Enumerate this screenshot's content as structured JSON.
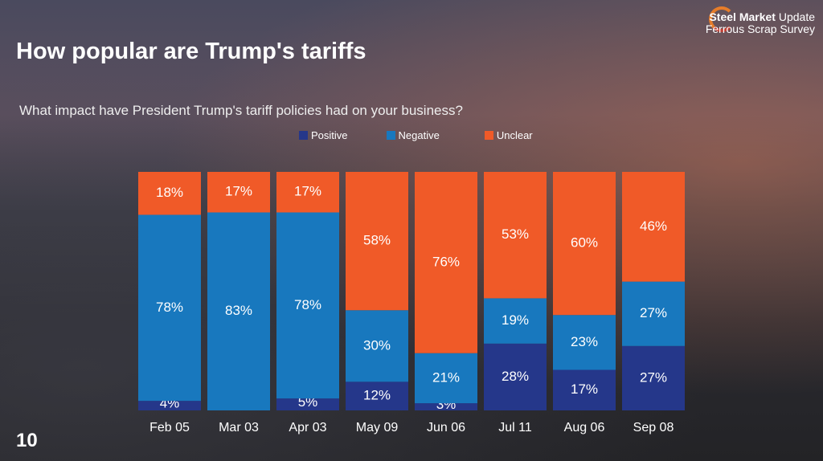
{
  "slide": {
    "title": "How popular are Trump's tariffs",
    "page_number": "10"
  },
  "logo": {
    "line1_bold": "Steel Market",
    "line1_light": "Update",
    "line2": "Ferrous Scrap Survey"
  },
  "chart_data": {
    "type": "bar",
    "stacked": true,
    "title": "What impact have President Trump's tariff policies had on your business?",
    "categories": [
      "Feb 05",
      "Mar 03",
      "Apr 03",
      "May 09",
      "Jun 06",
      "Jul 11",
      "Aug 06",
      "Sep 08"
    ],
    "series": [
      {
        "name": "Positive",
        "color": "#25378a",
        "values": [
          4,
          0,
          5,
          12,
          3,
          28,
          17,
          27
        ]
      },
      {
        "name": "Negative",
        "color": "#1878be",
        "values": [
          78,
          83,
          78,
          30,
          21,
          19,
          23,
          27
        ]
      },
      {
        "name": "Unclear",
        "color": "#f05a28",
        "values": [
          18,
          17,
          17,
          58,
          76,
          53,
          60,
          46
        ]
      }
    ],
    "ylim": [
      0,
      100
    ],
    "unit": "%",
    "legend": "top",
    "grid": false
  }
}
